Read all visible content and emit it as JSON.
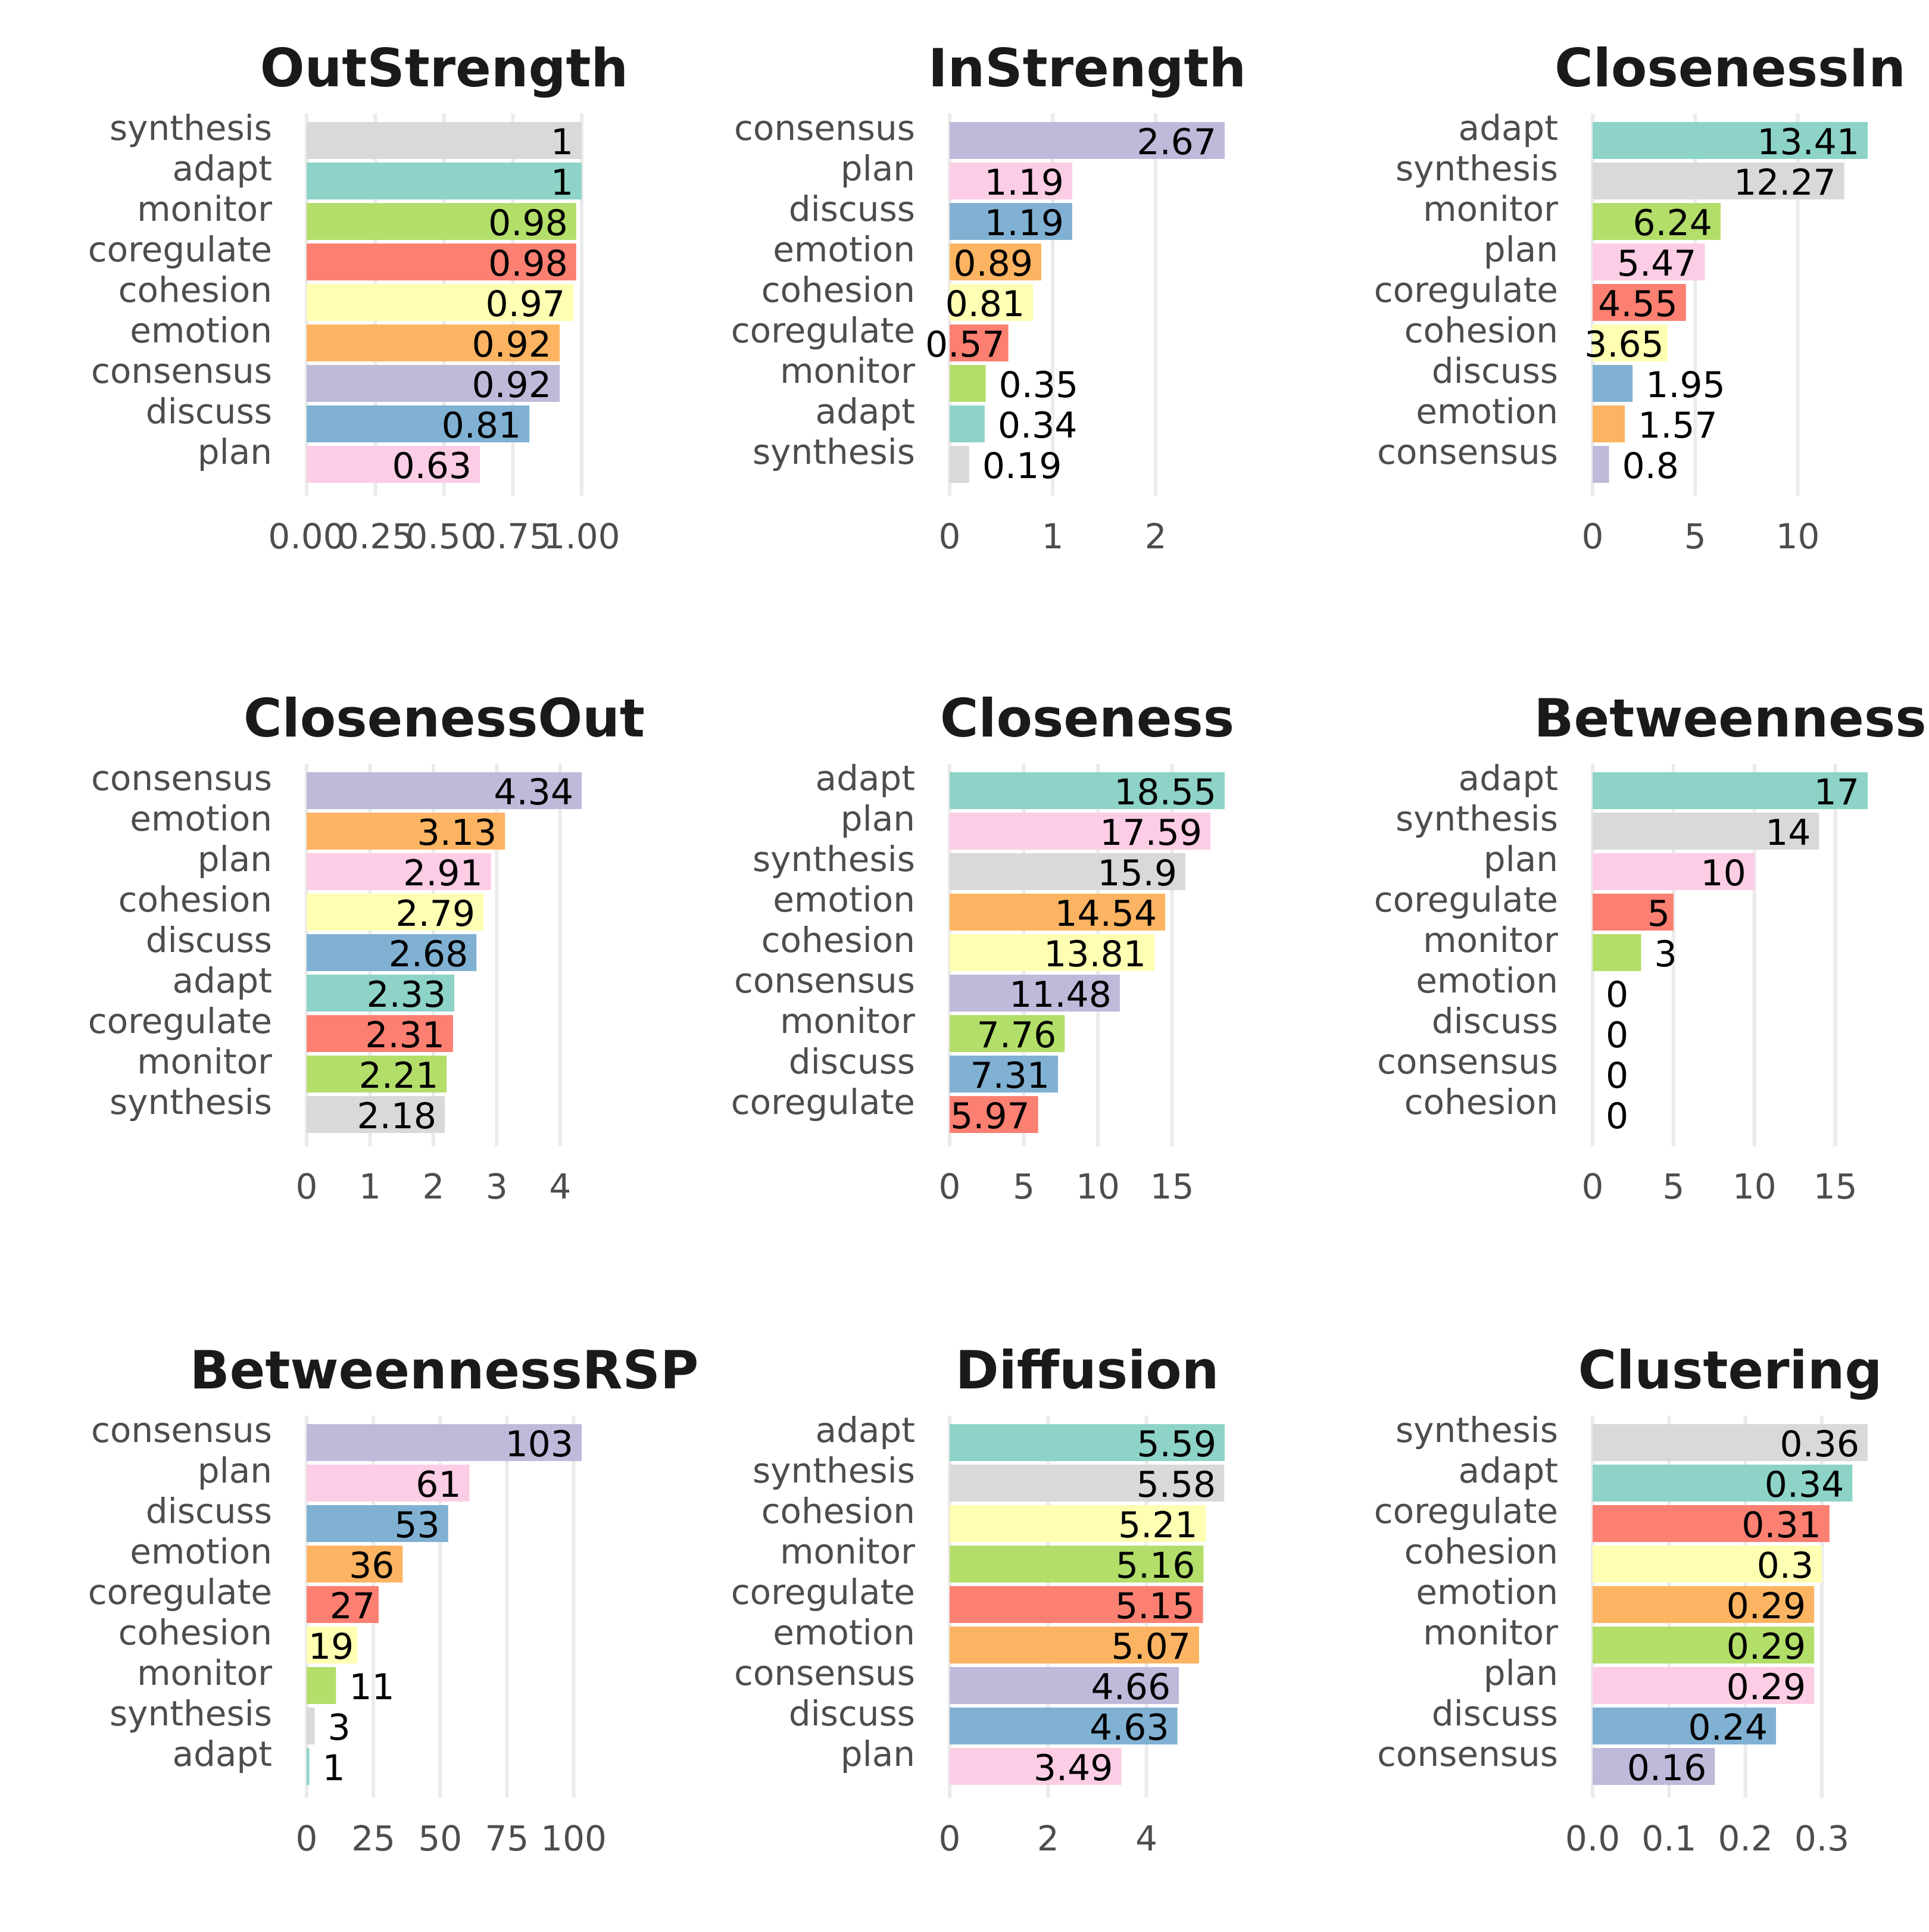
{
  "chart_data": [
    {
      "type": "bar",
      "orientation": "horizontal",
      "title": "OutStrength",
      "categories": [
        "synthesis",
        "adapt",
        "monitor",
        "coregulate",
        "cohesion",
        "emotion",
        "consensus",
        "discuss",
        "plan"
      ],
      "values": [
        1,
        1,
        0.98,
        0.98,
        0.97,
        0.92,
        0.92,
        0.81,
        0.63
      ],
      "value_labels": [
        "1",
        "1",
        "0.98",
        "0.98",
        "0.97",
        "0.92",
        "0.92",
        "0.81",
        "0.63"
      ],
      "xlim": [
        0,
        1
      ],
      "ticks": [
        0,
        0.25,
        0.5,
        0.75,
        1.0
      ],
      "tick_labels": [
        "0.00",
        "0.25",
        "0.50",
        "0.75",
        "1.00"
      ]
    },
    {
      "type": "bar",
      "orientation": "horizontal",
      "title": "InStrength",
      "categories": [
        "consensus",
        "plan",
        "discuss",
        "emotion",
        "cohesion",
        "coregulate",
        "monitor",
        "adapt",
        "synthesis"
      ],
      "values": [
        2.67,
        1.19,
        1.19,
        0.89,
        0.81,
        0.57,
        0.35,
        0.34,
        0.19
      ],
      "value_labels": [
        "2.67",
        "1.19",
        "1.19",
        "0.89",
        "0.81",
        "0.57",
        "0.35",
        "0.34",
        "0.19"
      ],
      "xlim": [
        0,
        2.67
      ],
      "ticks": [
        0,
        1,
        2
      ],
      "tick_labels": [
        "0",
        "1",
        "2"
      ]
    },
    {
      "type": "bar",
      "orientation": "horizontal",
      "title": "ClosenessIn",
      "categories": [
        "adapt",
        "synthesis",
        "monitor",
        "plan",
        "coregulate",
        "cohesion",
        "discuss",
        "emotion",
        "consensus"
      ],
      "values": [
        13.41,
        12.27,
        6.24,
        5.47,
        4.55,
        3.65,
        1.95,
        1.57,
        0.8
      ],
      "value_labels": [
        "13.41",
        "12.27",
        "6.24",
        "5.47",
        "4.55",
        "3.65",
        "1.95",
        "1.57",
        "0.8"
      ],
      "xlim": [
        0,
        13.41
      ],
      "ticks": [
        0,
        5,
        10
      ],
      "tick_labels": [
        "0",
        "5",
        "10"
      ]
    },
    {
      "type": "bar",
      "orientation": "horizontal",
      "title": "ClosenessOut",
      "categories": [
        "consensus",
        "emotion",
        "plan",
        "cohesion",
        "discuss",
        "adapt",
        "coregulate",
        "monitor",
        "synthesis"
      ],
      "values": [
        4.34,
        3.13,
        2.91,
        2.79,
        2.68,
        2.33,
        2.31,
        2.21,
        2.18
      ],
      "value_labels": [
        "4.34",
        "3.13",
        "2.91",
        "2.79",
        "2.68",
        "2.33",
        "2.31",
        "2.21",
        "2.18"
      ],
      "xlim": [
        0,
        4.34
      ],
      "ticks": [
        0,
        1,
        2,
        3,
        4
      ],
      "tick_labels": [
        "0",
        "1",
        "2",
        "3",
        "4"
      ]
    },
    {
      "type": "bar",
      "orientation": "horizontal",
      "title": "Closeness",
      "categories": [
        "adapt",
        "plan",
        "synthesis",
        "emotion",
        "cohesion",
        "consensus",
        "monitor",
        "discuss",
        "coregulate"
      ],
      "values": [
        18.55,
        17.59,
        15.9,
        14.54,
        13.81,
        11.48,
        7.76,
        7.31,
        5.97
      ],
      "value_labels": [
        "18.55",
        "17.59",
        "15.9",
        "14.54",
        "13.81",
        "11.48",
        "7.76",
        "7.31",
        "5.97"
      ],
      "xlim": [
        0,
        18.55
      ],
      "ticks": [
        0,
        5,
        10,
        15
      ],
      "tick_labels": [
        "0",
        "5",
        "10",
        "15"
      ]
    },
    {
      "type": "bar",
      "orientation": "horizontal",
      "title": "Betweenness",
      "categories": [
        "adapt",
        "synthesis",
        "plan",
        "coregulate",
        "monitor",
        "emotion",
        "discuss",
        "consensus",
        "cohesion"
      ],
      "values": [
        17,
        14,
        10,
        5,
        3,
        0,
        0,
        0,
        0
      ],
      "value_labels": [
        "17",
        "14",
        "10",
        "5",
        "3",
        "0",
        "0",
        "0",
        "0"
      ],
      "xlim": [
        0,
        17
      ],
      "ticks": [
        0,
        5,
        10,
        15
      ],
      "tick_labels": [
        "0",
        "5",
        "10",
        "15"
      ]
    },
    {
      "type": "bar",
      "orientation": "horizontal",
      "title": "BetweennessRSP",
      "categories": [
        "consensus",
        "plan",
        "discuss",
        "emotion",
        "coregulate",
        "cohesion",
        "monitor",
        "synthesis",
        "adapt"
      ],
      "values": [
        103,
        61,
        53,
        36,
        27,
        19,
        11,
        3,
        1
      ],
      "value_labels": [
        "103",
        "61",
        "53",
        "36",
        "27",
        "19",
        "11",
        "3",
        "1"
      ],
      "xlim": [
        0,
        103
      ],
      "ticks": [
        0,
        25,
        50,
        75,
        100
      ],
      "tick_labels": [
        "0",
        "25",
        "50",
        "75",
        "100"
      ]
    },
    {
      "type": "bar",
      "orientation": "horizontal",
      "title": "Diffusion",
      "categories": [
        "adapt",
        "synthesis",
        "cohesion",
        "monitor",
        "coregulate",
        "emotion",
        "consensus",
        "discuss",
        "plan"
      ],
      "values": [
        5.59,
        5.58,
        5.21,
        5.16,
        5.15,
        5.07,
        4.66,
        4.63,
        3.49
      ],
      "value_labels": [
        "5.59",
        "5.58",
        "5.21",
        "5.16",
        "5.15",
        "5.07",
        "4.66",
        "4.63",
        "3.49"
      ],
      "xlim": [
        0,
        5.59
      ],
      "ticks": [
        0,
        2,
        4
      ],
      "tick_labels": [
        "0",
        "2",
        "4"
      ]
    },
    {
      "type": "bar",
      "orientation": "horizontal",
      "title": "Clustering",
      "categories": [
        "synthesis",
        "adapt",
        "coregulate",
        "cohesion",
        "emotion",
        "monitor",
        "plan",
        "discuss",
        "consensus"
      ],
      "values": [
        0.36,
        0.34,
        0.31,
        0.3,
        0.29,
        0.29,
        0.29,
        0.24,
        0.16
      ],
      "value_labels": [
        "0.36",
        "0.34",
        "0.31",
        "0.3",
        "0.29",
        "0.29",
        "0.29",
        "0.24",
        "0.16"
      ],
      "xlim": [
        0,
        0.36
      ],
      "ticks": [
        0,
        0.1,
        0.2,
        0.3
      ],
      "tick_labels": [
        "0.0",
        "0.1",
        "0.2",
        "0.3"
      ]
    }
  ],
  "category_colors": {
    "adapt": "#8dd3c7",
    "cohesion": "#ffffb3",
    "consensus": "#bebada",
    "coregulate": "#fb8072",
    "discuss": "#80b1d3",
    "emotion": "#fdb462",
    "monitor": "#b3de69",
    "plan": "#fccde5",
    "synthesis": "#d9d9d9"
  }
}
